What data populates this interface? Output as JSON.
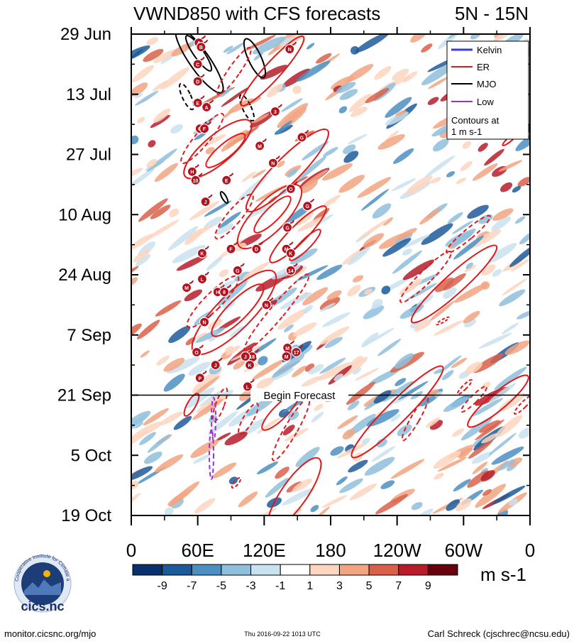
{
  "chart_data": {
    "type": "heatmap",
    "title": "VWND850 with CFS forecasts",
    "region": "5N - 15N",
    "x_tick_labels": [
      "0",
      "60E",
      "120E",
      "180",
      "120W",
      "60W",
      "0"
    ],
    "x_tick_degrees": [
      0,
      60,
      120,
      180,
      240,
      300,
      360
    ],
    "xlim_degrees_east": [
      0,
      360
    ],
    "y_tick_labels": [
      "29 Jun",
      "13 Jul",
      "27 Jul",
      "10 Aug",
      "24 Aug",
      "7 Sep",
      "21 Sep",
      "5 Oct",
      "19 Oct"
    ],
    "y_tick_days": [
      0,
      14,
      28,
      42,
      56,
      70,
      84,
      98,
      112
    ],
    "ylim_days_since_29jun": [
      0,
      112
    ],
    "forecast_start_day": 84,
    "forecast_label": "Begin Forecast",
    "legend": {
      "entries": [
        {
          "name": "Kelvin",
          "color": "#3b3bd9"
        },
        {
          "name": "ER",
          "color": "#e01a1a"
        },
        {
          "name": "MJO",
          "color": "#000000"
        },
        {
          "name": "Low",
          "color": "#9a30d9"
        }
      ],
      "note_line1": "Contours at",
      "note_line2": "1 m s-1",
      "placement": "top-right"
    },
    "colorbar": {
      "tick_labels": [
        "-9",
        "-7",
        "-5",
        "-3",
        "-1",
        "1",
        "3",
        "5",
        "7",
        "9"
      ],
      "colors": [
        "#08306b",
        "#1d5a9a",
        "#4e8fc3",
        "#8fbfdc",
        "#c9e2ef",
        "#ffffff",
        "#fdd5c0",
        "#f2a583",
        "#d9604a",
        "#b51d2a",
        "#67000d"
      ],
      "units": "m s-1"
    },
    "storms": [
      {
        "label": "A",
        "lon": 61,
        "day": 2
      },
      {
        "label": "B",
        "lon": 63,
        "day": 3
      },
      {
        "label": "N",
        "lon": 143,
        "day": 3.5
      },
      {
        "label": "C",
        "lon": 60,
        "day": 7
      },
      {
        "label": "D",
        "lon": 60,
        "day": 11
      },
      {
        "label": "E",
        "lon": 60,
        "day": 16
      },
      {
        "label": "A",
        "lon": 68,
        "day": 17
      },
      {
        "label": "3",
        "lon": 130,
        "day": 18
      },
      {
        "label": "G",
        "lon": 62,
        "day": 22
      },
      {
        "label": "F",
        "lon": 66,
        "day": 22
      },
      {
        "label": "G",
        "lon": 154,
        "day": 24
      },
      {
        "label": "M",
        "lon": 116,
        "day": 26
      },
      {
        "label": "N",
        "lon": 128,
        "day": 30
      },
      {
        "label": "H",
        "lon": 55,
        "day": 32
      },
      {
        "label": "10",
        "lon": 58,
        "day": 34
      },
      {
        "label": "E",
        "lon": 86,
        "day": 34
      },
      {
        "label": "O",
        "lon": 144,
        "day": 36
      },
      {
        "label": "J",
        "lon": 67,
        "day": 39
      },
      {
        "label": "G",
        "lon": 159,
        "day": 40
      },
      {
        "label": "G",
        "lon": 141,
        "day": 45
      },
      {
        "label": "D",
        "lon": 113,
        "day": 50
      },
      {
        "label": "M",
        "lon": 140,
        "day": 50
      },
      {
        "label": "K",
        "lon": 144,
        "day": 51
      },
      {
        "label": "F",
        "lon": 90,
        "day": 50
      },
      {
        "label": "K",
        "lon": 64,
        "day": 51
      },
      {
        "label": "G",
        "lon": 96,
        "day": 55
      },
      {
        "label": "14",
        "lon": 144,
        "day": 55
      },
      {
        "label": "L",
        "lon": 64,
        "day": 57
      },
      {
        "label": "M",
        "lon": 50,
        "day": 59
      },
      {
        "label": "H",
        "lon": 78,
        "day": 60
      },
      {
        "label": "8",
        "lon": 84,
        "day": 60
      },
      {
        "label": "N",
        "lon": 122,
        "day": 63
      },
      {
        "label": "N",
        "lon": 66,
        "day": 67
      },
      {
        "label": "M",
        "lon": 141,
        "day": 73
      },
      {
        "label": "O",
        "lon": 59,
        "day": 74
      },
      {
        "label": "18",
        "lon": 109,
        "day": 75
      },
      {
        "label": "M",
        "lon": 140,
        "day": 75
      },
      {
        "label": "17",
        "lon": 149,
        "day": 74
      },
      {
        "label": "J",
        "lon": 103,
        "day": 75
      },
      {
        "label": "J",
        "lon": 76,
        "day": 77
      },
      {
        "label": "K",
        "lon": 107,
        "day": 77
      },
      {
        "label": "P",
        "lon": 62,
        "day": 80
      },
      {
        "label": "L",
        "lon": 105,
        "day": 82
      }
    ]
  },
  "footer": {
    "left": "monitor.cicsnc.org/mjo",
    "center": "Thu 2016-09-22 1013 UTC",
    "right": "Carl Schreck (cjschrec@ncsu.edu)"
  },
  "logo": {
    "text": "cics.nc",
    "ring_text": "Cooperative Institute for Climate and Satellites"
  }
}
